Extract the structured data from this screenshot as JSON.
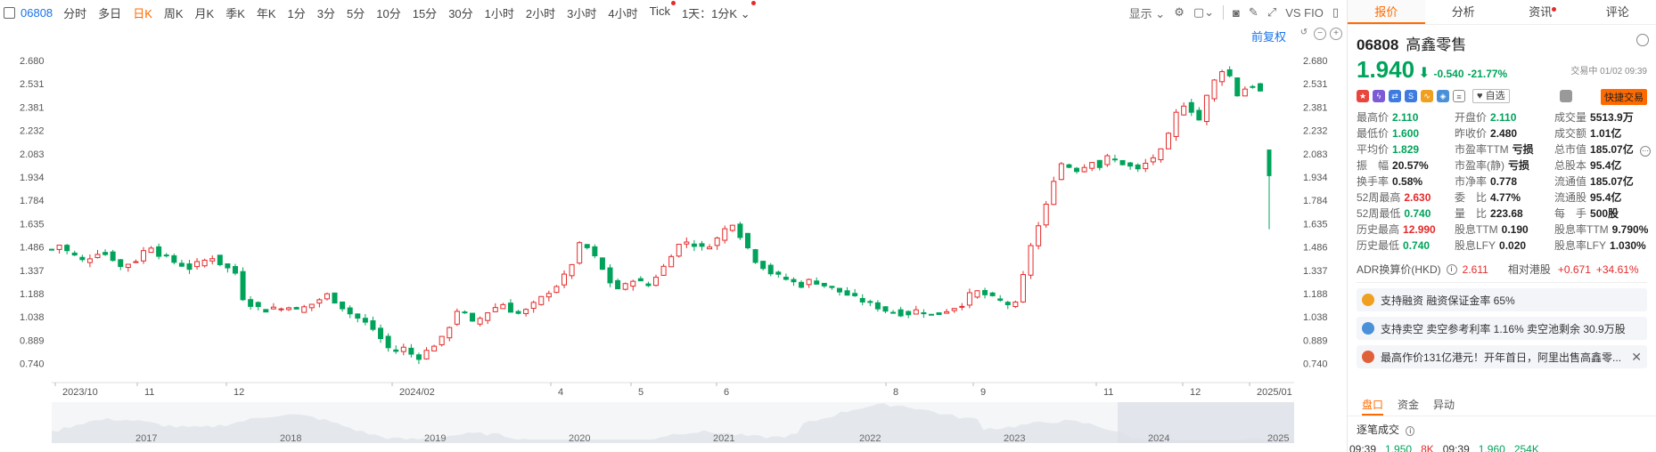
{
  "toolbar": {
    "code": "06808",
    "periods": [
      "分时",
      "多日",
      "日K",
      "周K",
      "月K",
      "季K",
      "年K",
      "1分",
      "3分",
      "5分",
      "10分",
      "15分",
      "30分",
      "1小时",
      "2小时",
      "3小时",
      "4小时",
      "Tick"
    ],
    "active_period": "日K",
    "multi_label": "1天：1分K",
    "display_label": "显示",
    "vs_label": "VS FIO",
    "fuquan_label": "前复权"
  },
  "chart_data": {
    "type": "candlestick",
    "y_ticks": [
      "2.680",
      "2.531",
      "2.381",
      "2.232",
      "2.083",
      "1.934",
      "1.784",
      "1.635",
      "1.486",
      "1.337",
      "1.188",
      "1.038",
      "0.889",
      "0.740"
    ],
    "ylim": [
      0.59,
      2.68
    ],
    "x_ticks": [
      "2023/10",
      "11",
      "12",
      "2024/02",
      "4",
      "5",
      "6",
      "8",
      "9",
      "11",
      "12",
      "2025/01"
    ],
    "overview_years": [
      "2017",
      "2018",
      "2019",
      "2020",
      "2021",
      "2022",
      "2023",
      "2024",
      "2025"
    ],
    "close_path": [
      1.47,
      1.5,
      1.46,
      1.43,
      1.4,
      1.42,
      1.45,
      1.44,
      1.41,
      1.36,
      1.38,
      1.4,
      1.46,
      1.49,
      1.44,
      1.42,
      1.39,
      1.37,
      1.35,
      1.38,
      1.4,
      1.42,
      1.38,
      1.35,
      1.32,
      1.16,
      1.12,
      1.1,
      1.08,
      1.1,
      1.09,
      1.11,
      1.08,
      1.1,
      1.12,
      1.15,
      1.18,
      1.14,
      1.1,
      1.06,
      1.03,
      1.0,
      0.96,
      0.9,
      0.84,
      0.82,
      0.84,
      0.8,
      0.78,
      0.82,
      0.86,
      0.9,
      0.98,
      1.08,
      1.06,
      1.0,
      1.03,
      1.07,
      1.1,
      1.12,
      1.08,
      1.06,
      1.08,
      1.12,
      1.16,
      1.2,
      1.24,
      1.3,
      1.38,
      1.5,
      1.48,
      1.42,
      1.34,
      1.26,
      1.22,
      1.24,
      1.28,
      1.26,
      1.24,
      1.3,
      1.36,
      1.44,
      1.5,
      1.52,
      1.5,
      1.48,
      1.5,
      1.54,
      1.6,
      1.64,
      1.56,
      1.48,
      1.4,
      1.36,
      1.32,
      1.3,
      1.28,
      1.26,
      1.24,
      1.27,
      1.26,
      1.24,
      1.22,
      1.2,
      1.18,
      1.16,
      1.14,
      1.12,
      1.1,
      1.08,
      1.07,
      1.06,
      1.06,
      1.08,
      1.07,
      1.05,
      1.06,
      1.08,
      1.1,
      1.12,
      1.18,
      1.2,
      1.18,
      1.16,
      1.14,
      1.12,
      1.12,
      1.3,
      1.5,
      1.62,
      1.75,
      1.92,
      2.02,
      2.0,
      1.98,
      2.0,
      2.04,
      2.0,
      2.06,
      2.04,
      2.02,
      2.0,
      1.98,
      2.02,
      2.06,
      2.1,
      2.2,
      2.34,
      2.4,
      2.36,
      2.3,
      2.45,
      2.55,
      2.62,
      2.58,
      2.46,
      2.5,
      2.52,
      2.48
    ],
    "last_close": 1.94,
    "last_low": 1.6
  },
  "right_panel": {
    "tabs": [
      "报价",
      "分析",
      "资讯",
      "评论"
    ],
    "active_tab": "报价",
    "code": "06808",
    "name": "高鑫零售",
    "price": "1.940",
    "change": "-0.540",
    "change_pct": "-21.77%",
    "trade_time": "交易中 01/02 09:39",
    "watch_label": "自选",
    "quick_trade_label": "快捷交易",
    "quote_rows": [
      [
        {
          "l": "最高价",
          "v": "2.110",
          "c": "green"
        },
        {
          "l": "开盘价",
          "v": "2.110",
          "c": "green"
        },
        {
          "l": "成交量",
          "v": "5513.9万",
          "c": ""
        }
      ],
      [
        {
          "l": "最低价",
          "v": "1.600",
          "c": "green"
        },
        {
          "l": "昨收价",
          "v": "2.480",
          "c": ""
        },
        {
          "l": "成交额",
          "v": "1.01亿",
          "c": ""
        }
      ],
      [
        {
          "l": "平均价",
          "v": "1.829",
          "c": "green"
        },
        {
          "l": "市盈率TTM",
          "v": "亏损",
          "c": ""
        },
        {
          "l": "总市值",
          "v": "185.07亿",
          "c": ""
        }
      ],
      [
        {
          "l": "振　幅",
          "v": "20.57%",
          "c": ""
        },
        {
          "l": "市盈率(静)",
          "v": "亏损",
          "c": ""
        },
        {
          "l": "总股本",
          "v": "95.4亿",
          "c": ""
        }
      ],
      [
        {
          "l": "换手率",
          "v": "0.58%",
          "c": ""
        },
        {
          "l": "市净率",
          "v": "0.778",
          "c": ""
        },
        {
          "l": "流通值",
          "v": "185.07亿",
          "c": ""
        }
      ],
      [
        {
          "l": "52周最高",
          "v": "2.630",
          "c": "red"
        },
        {
          "l": "委　比",
          "v": "4.77%",
          "c": ""
        },
        {
          "l": "流通股",
          "v": "95.4亿",
          "c": ""
        }
      ],
      [
        {
          "l": "52周最低",
          "v": "0.740",
          "c": "green"
        },
        {
          "l": "量　比",
          "v": "223.68",
          "c": ""
        },
        {
          "l": "每　手",
          "v": "500股",
          "c": ""
        }
      ],
      [
        {
          "l": "历史最高",
          "v": "12.990",
          "c": "red"
        },
        {
          "l": "股息TTM",
          "v": "0.190",
          "c": ""
        },
        {
          "l": "股息率TTM",
          "v": "9.790%",
          "c": ""
        }
      ],
      [
        {
          "l": "历史最低",
          "v": "0.740",
          "c": "green"
        },
        {
          "l": "股息LFY",
          "v": "0.020",
          "c": ""
        },
        {
          "l": "股息率LFY",
          "v": "1.030%",
          "c": ""
        }
      ]
    ],
    "adr_label": "ADR换算价(HKD)",
    "adr_price": "2.611",
    "rel_label": "相对港股",
    "rel_change": "+0.671",
    "rel_pct": "+34.61%",
    "banners": [
      {
        "text": "支持融资  融资保证金率 65%",
        "color": "#f0a020"
      },
      {
        "text": "支持卖空  卖空参考利率 1.16%  卖空池剩余 30.9万股",
        "color": "#4a90d9"
      },
      {
        "text": "最高作价131亿港元！开年首日，阿里出售高鑫零...",
        "color": "#e0603a"
      }
    ],
    "sub_tabs": [
      "盘口",
      "资金",
      "异动"
    ],
    "active_sub_tab": "盘口",
    "ticks_title": "逐笔成交",
    "tick_row": [
      "09:39",
      "1.950",
      "8K",
      "09:39",
      "1.960",
      "254K"
    ]
  },
  "colors": {
    "up": "#e52a2a",
    "down": "#00a35a",
    "accent": "#ff6a00",
    "link": "#1a73e8"
  }
}
